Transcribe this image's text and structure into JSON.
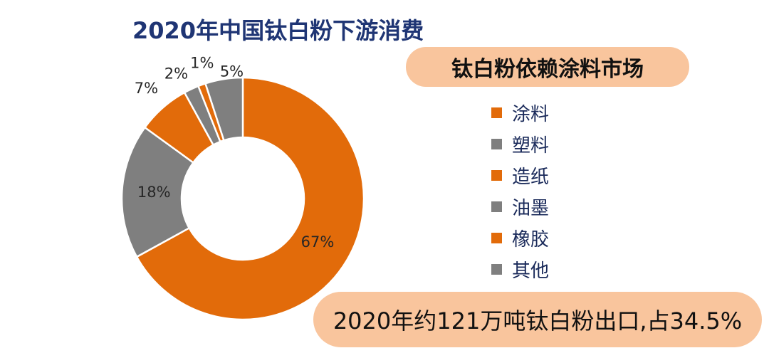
{
  "title": "2020年中国钛白粉下游消费",
  "callout_top": "钛白粉依赖涂料市场",
  "callout_bottom": "2020年约121万吨钛白粉出口,占34.5%",
  "colors": {
    "orange": "#e26b0a",
    "gray": "#7f7f7f",
    "title": "#1f3574",
    "callout_bg": "#f9c59d"
  },
  "chart_data": {
    "type": "pie",
    "donut": true,
    "title": "2020年中国钛白粉下游消费",
    "legend_position": "right",
    "categories": [
      "涂料",
      "塑料",
      "造纸",
      "油墨",
      "橡胶",
      "其他"
    ],
    "values": [
      67,
      18,
      7,
      2,
      1,
      5
    ],
    "labels": [
      "67%",
      "18%",
      "7%",
      "2%",
      "1%",
      "5%"
    ],
    "colors": [
      "#e26b0a",
      "#7f7f7f",
      "#e26b0a",
      "#7f7f7f",
      "#e26b0a",
      "#7f7f7f"
    ]
  }
}
